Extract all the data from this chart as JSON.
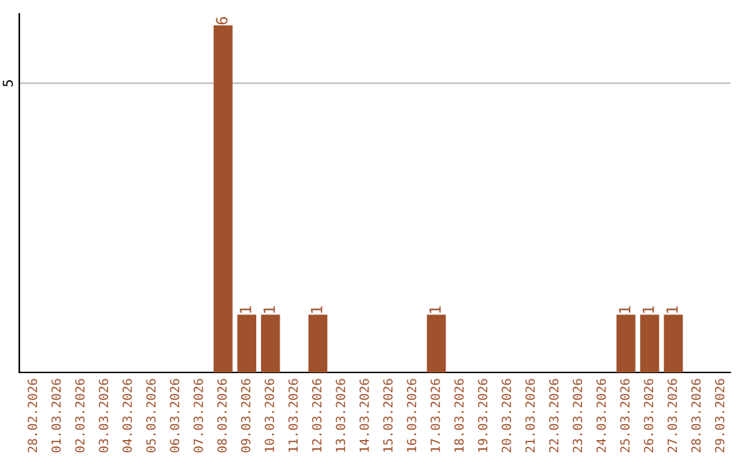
{
  "chart_data": {
    "type": "bar",
    "categories": [
      "28.02.2026",
      "01.03.2026",
      "02.03.2026",
      "03.03.2026",
      "04.03.2026",
      "05.03.2026",
      "06.03.2026",
      "07.03.2026",
      "08.03.2026",
      "09.03.2026",
      "10.03.2026",
      "11.03.2026",
      "12.03.2026",
      "13.03.2026",
      "14.03.2026",
      "15.03.2026",
      "16.03.2026",
      "17.03.2026",
      "18.03.2026",
      "19.03.2026",
      "20.03.2026",
      "21.03.2026",
      "22.03.2026",
      "23.03.2026",
      "24.03.2026",
      "25.03.2026",
      "26.03.2026",
      "27.03.2026",
      "28.03.2026",
      "29.03.2026"
    ],
    "values": [
      0,
      0,
      0,
      0,
      0,
      0,
      0,
      0,
      6,
      1,
      1,
      0,
      1,
      0,
      0,
      0,
      0,
      1,
      0,
      0,
      0,
      0,
      0,
      0,
      0,
      1,
      1,
      1,
      0,
      0
    ],
    "value_labels": [
      null,
      null,
      null,
      null,
      null,
      null,
      null,
      null,
      "6",
      "1",
      "1",
      null,
      "1",
      null,
      null,
      null,
      null,
      "1",
      null,
      null,
      null,
      null,
      null,
      null,
      null,
      "1",
      "1",
      "1",
      null,
      null
    ],
    "color": "#a0522d",
    "ylim": [
      0,
      6.2
    ],
    "yticks": [
      5
    ],
    "grid": "y"
  }
}
